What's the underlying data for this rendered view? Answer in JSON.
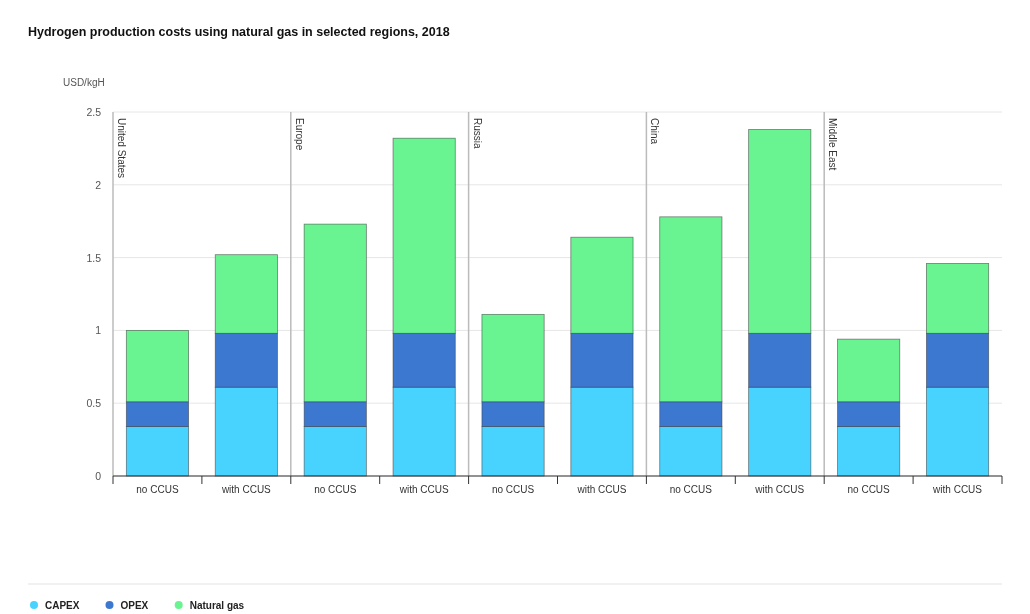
{
  "chart_data": {
    "type": "bar",
    "title": "Hydrogen production costs using natural gas in selected regions, 2018",
    "ylabel": "USD/kgH",
    "stacked": true,
    "categories": [
      "no CCUS",
      "with CCUS",
      "no CCUS",
      "with CCUS",
      "no CCUS",
      "with CCUS",
      "no CCUS",
      "with CCUS",
      "no CCUS",
      "with CCUS"
    ],
    "annotations": [
      "United States",
      "Europe",
      "Russia",
      "China",
      "Middle East"
    ],
    "series": [
      {
        "name": "CAPEX",
        "color": "#48d3ff",
        "values": [
          0.34,
          0.61,
          0.34,
          0.61,
          0.34,
          0.61,
          0.34,
          0.61,
          0.34,
          0.61
        ]
      },
      {
        "name": "OPEX",
        "color": "#3c78d0",
        "values": [
          0.17,
          0.37,
          0.17,
          0.37,
          0.17,
          0.37,
          0.17,
          0.37,
          0.17,
          0.37
        ]
      },
      {
        "name": "Natural gas",
        "color": "#69f391",
        "values": [
          0.49,
          0.54,
          1.22,
          1.34,
          0.6,
          0.66,
          1.27,
          1.4,
          0.43,
          0.48
        ]
      }
    ],
    "ylim": [
      0,
      2.5
    ],
    "yticks": [
      0,
      0.5,
      1,
      1.5,
      2,
      2.5
    ],
    "grid": "y",
    "legend": "bottom left"
  }
}
